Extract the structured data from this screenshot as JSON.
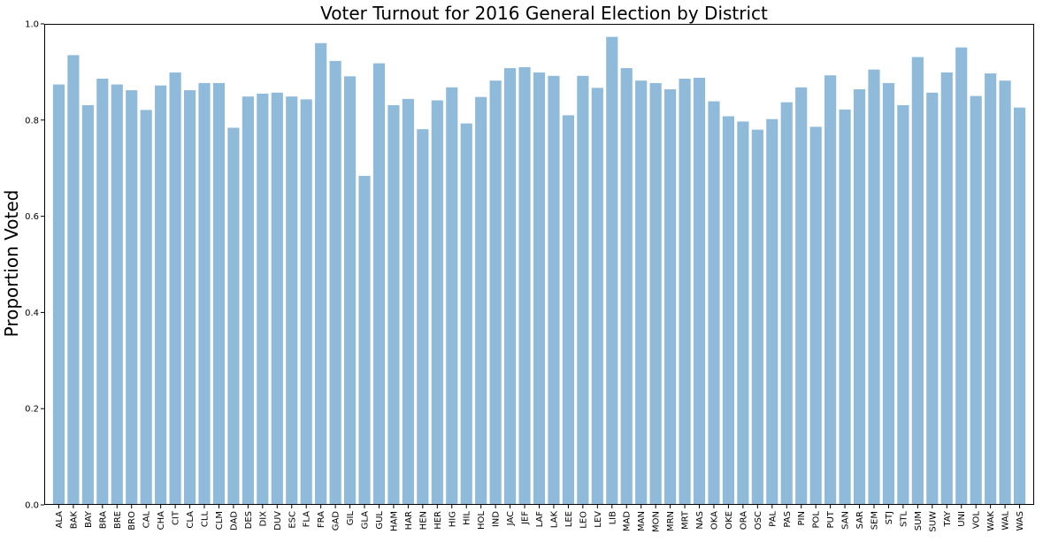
{
  "chart_data": {
    "type": "bar",
    "title": "Voter Turnout for 2016 General Election by District",
    "xlabel": "",
    "ylabel": "Proportion Voted",
    "ylim": [
      0,
      1.0
    ],
    "yticks": [
      0.0,
      0.2,
      0.4,
      0.6,
      0.8,
      1.0
    ],
    "ytick_labels": [
      "0.0",
      "0.2",
      "0.4",
      "0.6",
      "0.8",
      "1.0"
    ],
    "grid": false,
    "bar_color": "#8fbad9",
    "categories": [
      "ALA",
      "BAK",
      "BAY",
      "BRA",
      "BRE",
      "BRO",
      "CAL",
      "CHA",
      "CIT",
      "CLA",
      "CLL",
      "CLM",
      "DAD",
      "DES",
      "DIX",
      "DUV",
      "ESC",
      "FLA",
      "FRA",
      "GAD",
      "GIL",
      "GLA",
      "GUL",
      "HAM",
      "HAR",
      "HEN",
      "HER",
      "HIG",
      "HIL",
      "HOL",
      "IND",
      "JAC",
      "JEF",
      "LAF",
      "LAK",
      "LEE",
      "LEO",
      "LEV",
      "LIB",
      "MAD",
      "MAN",
      "MON",
      "MRN",
      "MRT",
      "NAS",
      "OKA",
      "OKE",
      "ORA",
      "OSC",
      "PAL",
      "PAS",
      "PIN",
      "POL",
      "PUT",
      "SAN",
      "SAR",
      "SEM",
      "STJ",
      "STL",
      "SUM",
      "SUW",
      "TAY",
      "UNI",
      "VOL",
      "WAK",
      "WAL",
      "WAS"
    ],
    "values": [
      0.874,
      0.935,
      0.831,
      0.886,
      0.874,
      0.862,
      0.821,
      0.872,
      0.899,
      0.862,
      0.877,
      0.877,
      0.784,
      0.849,
      0.855,
      0.857,
      0.849,
      0.843,
      0.96,
      0.923,
      0.891,
      0.684,
      0.918,
      0.831,
      0.844,
      0.781,
      0.841,
      0.868,
      0.793,
      0.848,
      0.882,
      0.908,
      0.91,
      0.899,
      0.892,
      0.81,
      0.892,
      0.867,
      0.973,
      0.908,
      0.882,
      0.877,
      0.864,
      0.886,
      0.888,
      0.839,
      0.808,
      0.797,
      0.78,
      0.802,
      0.837,
      0.868,
      0.786,
      0.893,
      0.822,
      0.864,
      0.905,
      0.877,
      0.831,
      0.931,
      0.857,
      0.899,
      0.951,
      0.85,
      0.897,
      0.882,
      0.826
    ]
  }
}
